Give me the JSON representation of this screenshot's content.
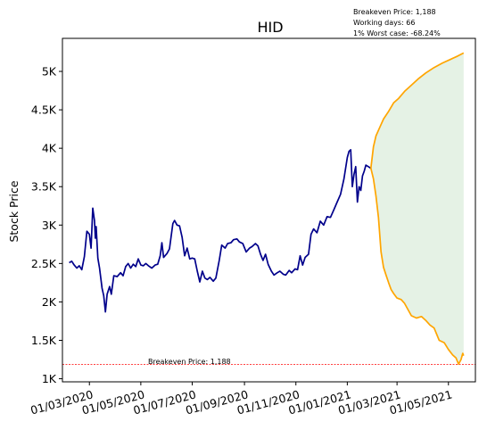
{
  "chart_data": {
    "type": "line",
    "title": "HID",
    "ylabel": "Stock Price",
    "xlabel": "",
    "ylim": [
      960,
      5430
    ],
    "xlim": [
      "2020-01-29",
      "2021-06-02"
    ],
    "y_ticks": [
      {
        "value": 1000,
        "label": "1K"
      },
      {
        "value": 1500,
        "label": "1.5K"
      },
      {
        "value": 2000,
        "label": "2K"
      },
      {
        "value": 2500,
        "label": "2.5K"
      },
      {
        "value": 3000,
        "label": "3K"
      },
      {
        "value": 3500,
        "label": "3.5K"
      },
      {
        "value": 4000,
        "label": "4K"
      },
      {
        "value": 4500,
        "label": "4.5K"
      },
      {
        "value": 5000,
        "label": "5K"
      }
    ],
    "x_ticks": [
      {
        "date": "2020-03-01",
        "label": "01/03/2020"
      },
      {
        "date": "2020-05-01",
        "label": "01/05/2020"
      },
      {
        "date": "2020-07-01",
        "label": "01/07/2020"
      },
      {
        "date": "2020-09-01",
        "label": "01/09/2020"
      },
      {
        "date": "2020-11-01",
        "label": "01/11/2020"
      },
      {
        "date": "2021-01-01",
        "label": "01/01/2021"
      },
      {
        "date": "2021-03-01",
        "label": "01/03/2021"
      },
      {
        "date": "2021-05-01",
        "label": "01/05/2021"
      }
    ],
    "annotations": {
      "breakeven": "Breakeven Price: 1,188",
      "working_days": "Working days: 66",
      "worst_case": "1% Worst case: -68.24%",
      "breakeven_line_label": "Breakeven Price: 1,188"
    },
    "breakeven_value": 1188,
    "colors": {
      "history": "#00008b",
      "projection": "#ffa500",
      "fill": "#e5f2e5",
      "breakeven": "#ff0000"
    },
    "series": [
      {
        "values": [
          [
            "2020-02-06",
            2510
          ],
          [
            "2020-02-09",
            2530
          ],
          [
            "2020-02-12",
            2480
          ],
          [
            "2020-02-15",
            2440
          ],
          [
            "2020-02-18",
            2470
          ],
          [
            "2020-02-21",
            2420
          ],
          [
            "2020-02-24",
            2590
          ],
          [
            "2020-02-27",
            2920
          ],
          [
            "2020-03-01",
            2880
          ],
          [
            "2020-03-03",
            2700
          ],
          [
            "2020-03-05",
            3220
          ],
          [
            "2020-03-07",
            3060
          ],
          [
            "2020-03-08",
            2830
          ],
          [
            "2020-03-09",
            2980
          ],
          [
            "2020-03-11",
            2570
          ],
          [
            "2020-03-13",
            2440
          ],
          [
            "2020-03-16",
            2180
          ],
          [
            "2020-03-18",
            2080
          ],
          [
            "2020-03-20",
            1870
          ],
          [
            "2020-03-22",
            2100
          ],
          [
            "2020-03-25",
            2200
          ],
          [
            "2020-03-27",
            2100
          ],
          [
            "2020-03-30",
            2340
          ],
          [
            "2020-04-03",
            2330
          ],
          [
            "2020-04-07",
            2380
          ],
          [
            "2020-04-10",
            2340
          ],
          [
            "2020-04-13",
            2460
          ],
          [
            "2020-04-16",
            2500
          ],
          [
            "2020-04-19",
            2440
          ],
          [
            "2020-04-22",
            2490
          ],
          [
            "2020-04-25",
            2460
          ],
          [
            "2020-04-28",
            2560
          ],
          [
            "2020-05-01",
            2480
          ],
          [
            "2020-05-04",
            2470
          ],
          [
            "2020-05-07",
            2500
          ],
          [
            "2020-05-10",
            2470
          ],
          [
            "2020-05-14",
            2440
          ],
          [
            "2020-05-18",
            2480
          ],
          [
            "2020-05-21",
            2490
          ],
          [
            "2020-05-24",
            2600
          ],
          [
            "2020-05-26",
            2770
          ],
          [
            "2020-05-28",
            2580
          ],
          [
            "2020-06-01",
            2630
          ],
          [
            "2020-06-04",
            2690
          ],
          [
            "2020-06-08",
            3020
          ],
          [
            "2020-06-10",
            3060
          ],
          [
            "2020-06-13",
            3000
          ],
          [
            "2020-06-16",
            2990
          ],
          [
            "2020-06-19",
            2840
          ],
          [
            "2020-06-22",
            2600
          ],
          [
            "2020-06-25",
            2700
          ],
          [
            "2020-06-28",
            2560
          ],
          [
            "2020-07-01",
            2570
          ],
          [
            "2020-07-04",
            2560
          ],
          [
            "2020-07-07",
            2400
          ],
          [
            "2020-07-10",
            2260
          ],
          [
            "2020-07-13",
            2400
          ],
          [
            "2020-07-16",
            2310
          ],
          [
            "2020-07-19",
            2290
          ],
          [
            "2020-07-22",
            2320
          ],
          [
            "2020-07-26",
            2270
          ],
          [
            "2020-07-29",
            2310
          ],
          [
            "2020-08-02",
            2540
          ],
          [
            "2020-08-05",
            2740
          ],
          [
            "2020-08-09",
            2700
          ],
          [
            "2020-08-12",
            2760
          ],
          [
            "2020-08-16",
            2770
          ],
          [
            "2020-08-19",
            2810
          ],
          [
            "2020-08-23",
            2820
          ],
          [
            "2020-08-26",
            2780
          ],
          [
            "2020-08-30",
            2760
          ],
          [
            "2020-09-03",
            2650
          ],
          [
            "2020-09-07",
            2700
          ],
          [
            "2020-09-10",
            2720
          ],
          [
            "2020-09-14",
            2760
          ],
          [
            "2020-09-17",
            2730
          ],
          [
            "2020-09-20",
            2620
          ],
          [
            "2020-09-23",
            2540
          ],
          [
            "2020-09-26",
            2620
          ],
          [
            "2020-09-29",
            2490
          ],
          [
            "2020-10-03",
            2400
          ],
          [
            "2020-10-06",
            2350
          ],
          [
            "2020-10-10",
            2380
          ],
          [
            "2020-10-13",
            2400
          ],
          [
            "2020-10-17",
            2360
          ],
          [
            "2020-10-20",
            2350
          ],
          [
            "2020-10-24",
            2410
          ],
          [
            "2020-10-27",
            2380
          ],
          [
            "2020-10-31",
            2430
          ],
          [
            "2020-11-03",
            2420
          ],
          [
            "2020-11-06",
            2600
          ],
          [
            "2020-11-09",
            2480
          ],
          [
            "2020-11-12",
            2580
          ],
          [
            "2020-11-16",
            2620
          ],
          [
            "2020-11-19",
            2880
          ],
          [
            "2020-11-22",
            2950
          ],
          [
            "2020-11-26",
            2900
          ],
          [
            "2020-11-30",
            3050
          ],
          [
            "2020-12-04",
            3000
          ],
          [
            "2020-12-08",
            3110
          ],
          [
            "2020-12-12",
            3100
          ],
          [
            "2020-12-16",
            3200
          ],
          [
            "2020-12-20",
            3300
          ],
          [
            "2020-12-24",
            3400
          ],
          [
            "2020-12-28",
            3600
          ],
          [
            "2021-01-01",
            3880
          ],
          [
            "2021-01-03",
            3960
          ],
          [
            "2021-01-05",
            3980
          ],
          [
            "2021-01-07",
            3500
          ],
          [
            "2021-01-09",
            3660
          ],
          [
            "2021-01-11",
            3760
          ],
          [
            "2021-01-13",
            3300
          ],
          [
            "2021-01-15",
            3500
          ],
          [
            "2021-01-17",
            3450
          ],
          [
            "2021-01-19",
            3640
          ],
          [
            "2021-01-21",
            3700
          ],
          [
            "2021-01-23",
            3780
          ],
          [
            "2021-01-26",
            3760
          ],
          [
            "2021-01-29",
            3740
          ]
        ]
      },
      {
        "values": [
          [
            "2021-01-29",
            3740
          ],
          [
            "2021-02-01",
            3600
          ],
          [
            "2021-02-04",
            3380
          ],
          [
            "2021-02-07",
            3100
          ],
          [
            "2021-02-10",
            2650
          ],
          [
            "2021-02-13",
            2450
          ],
          [
            "2021-02-16",
            2350
          ],
          [
            "2021-02-19",
            2250
          ],
          [
            "2021-02-22",
            2160
          ],
          [
            "2021-02-25",
            2110
          ],
          [
            "2021-03-01",
            2050
          ],
          [
            "2021-03-06",
            2030
          ],
          [
            "2021-03-10",
            1980
          ],
          [
            "2021-03-14",
            1900
          ],
          [
            "2021-03-18",
            1820
          ],
          [
            "2021-03-24",
            1790
          ],
          [
            "2021-03-30",
            1810
          ],
          [
            "2021-04-04",
            1760
          ],
          [
            "2021-04-09",
            1700
          ],
          [
            "2021-04-14",
            1660
          ],
          [
            "2021-04-20",
            1500
          ],
          [
            "2021-04-26",
            1470
          ],
          [
            "2021-05-01",
            1380
          ],
          [
            "2021-05-06",
            1310
          ],
          [
            "2021-05-10",
            1270
          ],
          [
            "2021-05-13",
            1190
          ],
          [
            "2021-05-16",
            1250
          ],
          [
            "2021-05-18",
            1330
          ],
          [
            "2021-05-19",
            1300
          ]
        ]
      },
      {
        "values": [
          [
            "2021-01-29",
            3740
          ],
          [
            "2021-02-01",
            4020
          ],
          [
            "2021-02-04",
            4160
          ],
          [
            "2021-02-08",
            4260
          ],
          [
            "2021-02-13",
            4380
          ],
          [
            "2021-02-19",
            4480
          ],
          [
            "2021-02-25",
            4590
          ],
          [
            "2021-03-03",
            4650
          ],
          [
            "2021-03-10",
            4740
          ],
          [
            "2021-03-18",
            4820
          ],
          [
            "2021-03-26",
            4900
          ],
          [
            "2021-04-04",
            4980
          ],
          [
            "2021-04-14",
            5050
          ],
          [
            "2021-04-24",
            5110
          ],
          [
            "2021-05-04",
            5160
          ],
          [
            "2021-05-12",
            5200
          ],
          [
            "2021-05-19",
            5240
          ]
        ]
      }
    ]
  }
}
